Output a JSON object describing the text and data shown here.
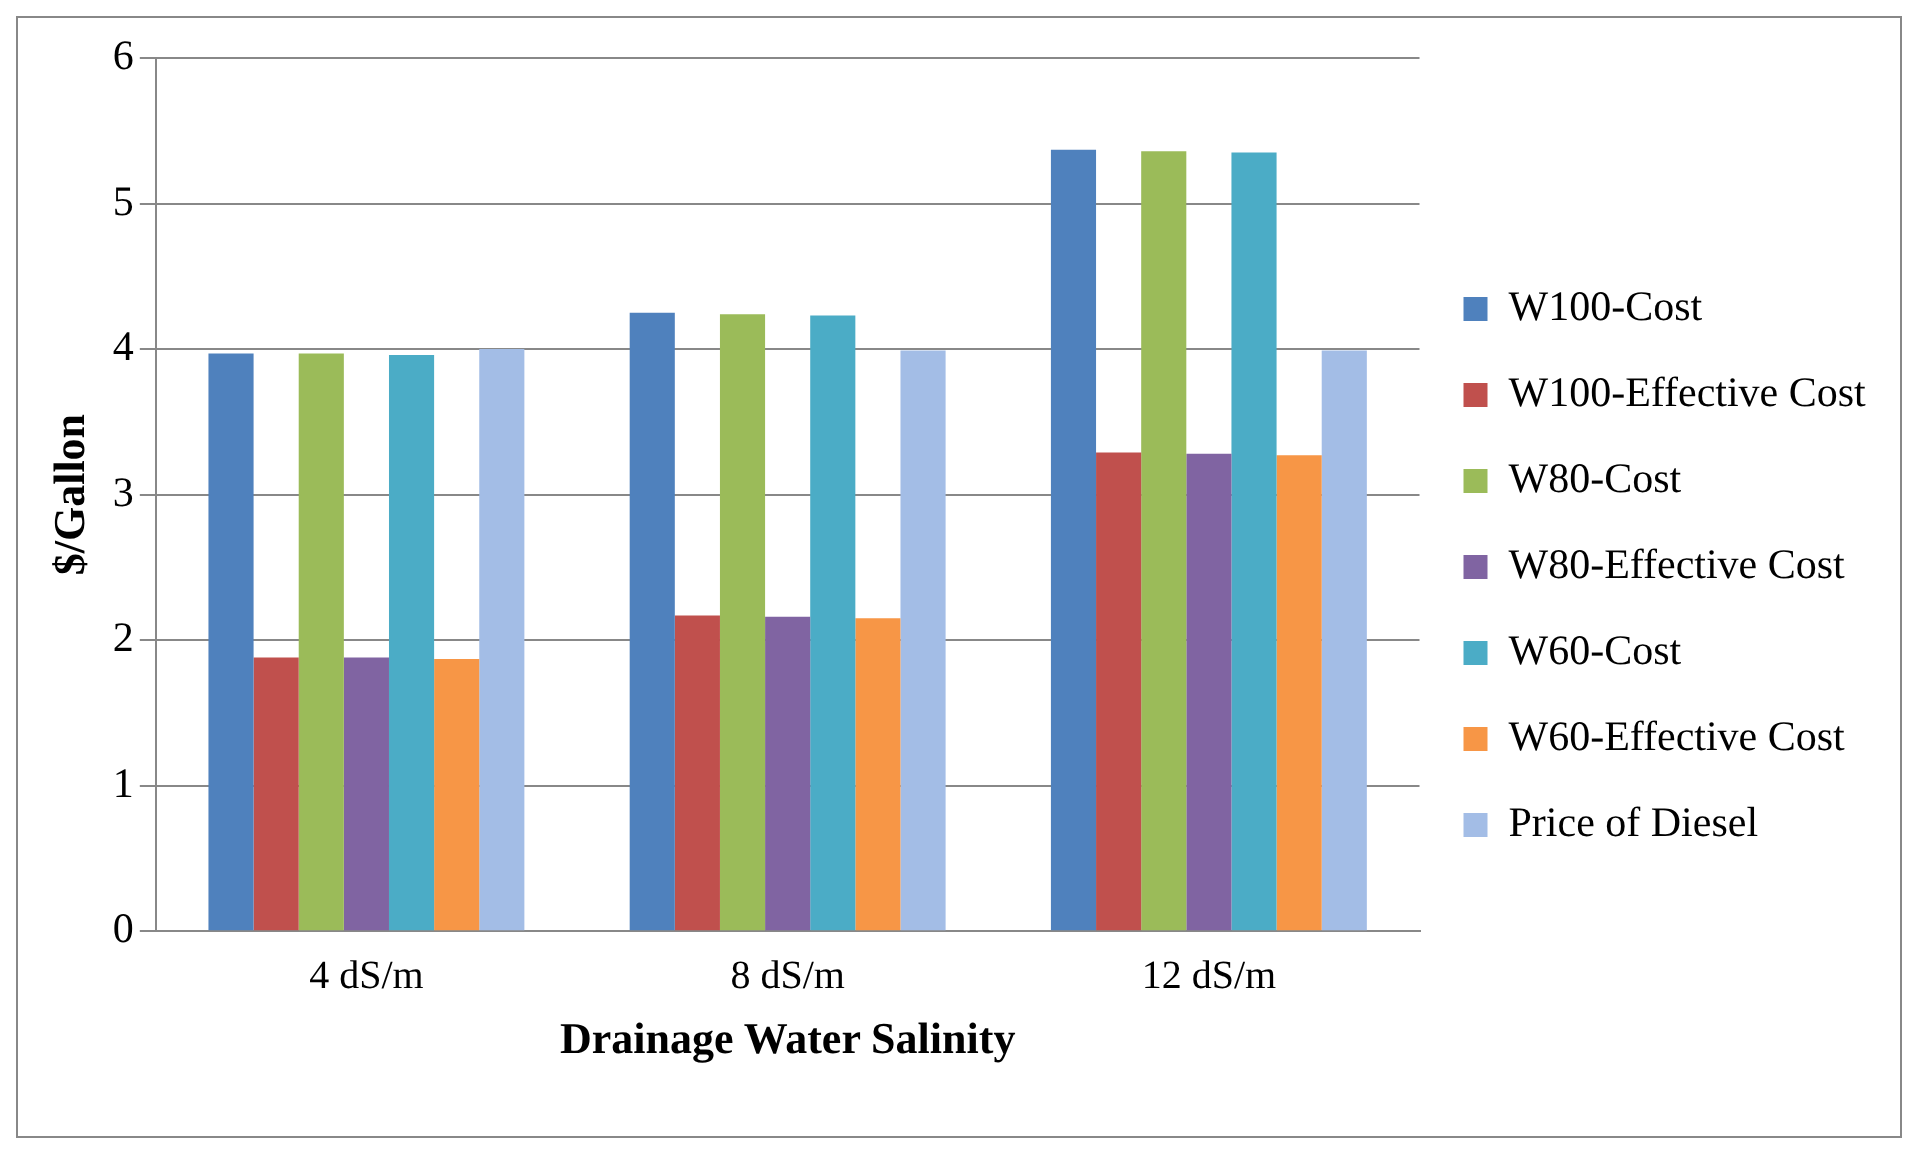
{
  "chart_data": {
    "type": "bar",
    "xlabel": "Drainage Water Salinity",
    "ylabel": "$/Gallon",
    "categories": [
      "4 dS/m",
      "8 dS/m",
      "12 dS/m"
    ],
    "series": [
      {
        "name": "W100-Cost",
        "color": "#4f81bd",
        "values": [
          3.97,
          4.25,
          5.37
        ]
      },
      {
        "name": "W100-Effective Cost",
        "color": "#c0504d",
        "values": [
          1.88,
          2.17,
          3.29
        ]
      },
      {
        "name": "W80-Cost",
        "color": "#9bbb59",
        "values": [
          3.97,
          4.24,
          5.36
        ]
      },
      {
        "name": "W80-Effective Cost",
        "color": "#8064a2",
        "values": [
          1.88,
          2.16,
          3.28
        ]
      },
      {
        "name": "W60-Cost",
        "color": "#4bacc6",
        "values": [
          3.96,
          4.23,
          5.35
        ]
      },
      {
        "name": "W60-Effective Cost",
        "color": "#f79646",
        "values": [
          1.87,
          2.15,
          3.27
        ]
      },
      {
        "name": "Price of Diesel",
        "color": "#a3bde6",
        "values": [
          4.0,
          3.99,
          3.99
        ]
      }
    ],
    "ylim": [
      0,
      6
    ],
    "yticks": [
      0,
      1,
      2,
      3,
      4,
      5,
      6
    ],
    "grid": "y",
    "legend": "right"
  }
}
